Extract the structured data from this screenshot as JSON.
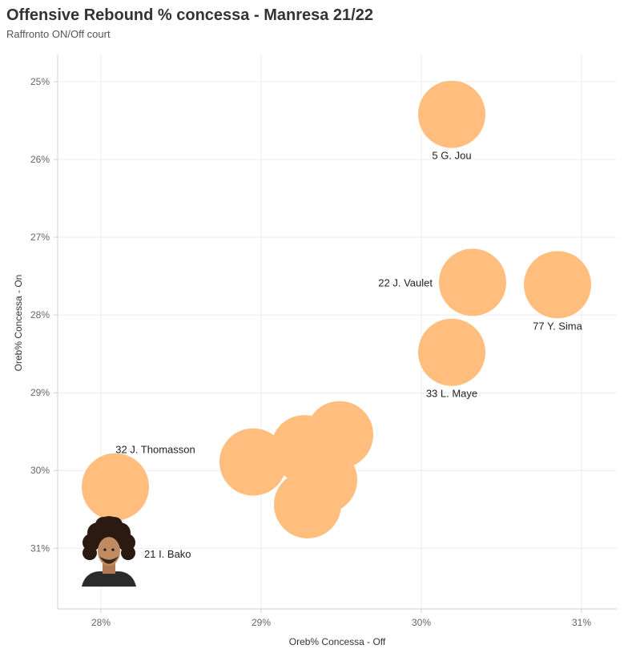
{
  "header": {
    "title": "Offensive Rebound % concessa - Manresa 21/22",
    "subtitle": "Raffronto ON/Off court"
  },
  "chart_data": {
    "type": "scatter",
    "xlabel": "Oreb% Concessa - Off",
    "ylabel": "Oreb% Concessa - On",
    "xlim": [
      27.73,
      31.22
    ],
    "ylim": [
      24.65,
      31.78
    ],
    "y_reversed": true,
    "x_ticks": [
      28,
      29,
      30,
      31
    ],
    "y_ticks": [
      25,
      26,
      27,
      28,
      29,
      30,
      31
    ],
    "x_tick_labels": [
      "28%",
      "29%",
      "30%",
      "31%"
    ],
    "y_tick_labels": [
      "25%",
      "26%",
      "27%",
      "28%",
      "29%",
      "30%",
      "31%"
    ],
    "grid": true,
    "marker_color": "#FFBE7D",
    "points": [
      {
        "label": "5 G. Jou",
        "x": 30.19,
        "y": 25.42,
        "label_pos": "below"
      },
      {
        "label": "22 J. Vaulet",
        "x": 30.32,
        "y": 27.58,
        "label_pos": "left"
      },
      {
        "label": "77 Y. Sima",
        "x": 30.85,
        "y": 27.61,
        "label_pos": "below"
      },
      {
        "label": "33 L. Maye",
        "x": 30.19,
        "y": 28.48,
        "label_pos": "below"
      },
      {
        "label": "32 J. Thomasson",
        "x": 28.09,
        "y": 30.21,
        "label_pos": "above"
      },
      {
        "label": "",
        "x": 28.95,
        "y": 29.89
      },
      {
        "label": "",
        "x": 29.49,
        "y": 29.54
      },
      {
        "label": "",
        "x": 29.27,
        "y": 29.72
      },
      {
        "label": "",
        "x": 29.39,
        "y": 30.12
      },
      {
        "label": "",
        "x": 29.29,
        "y": 30.44
      },
      {
        "label": "21 I. Bako",
        "x": 28.05,
        "y": 31.07,
        "label_pos": "right",
        "marker": "player-photo"
      }
    ]
  }
}
